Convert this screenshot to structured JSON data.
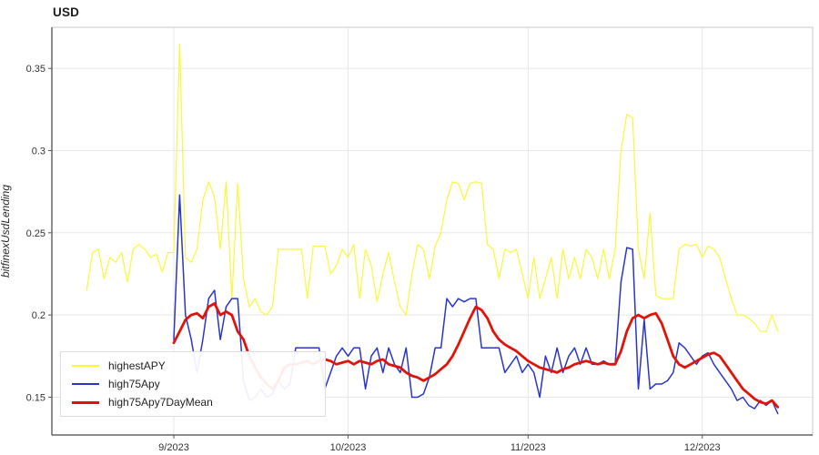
{
  "chart_data": {
    "type": "line",
    "title": "USD",
    "ylabel": "bitfinexUsdLending",
    "y_ticks": [
      0.15,
      0.2,
      0.25,
      0.3,
      0.35
    ],
    "ylim": [
      0.127,
      0.375
    ],
    "x_tick_labels": [
      "9/2023",
      "10/2023",
      "11/2023",
      "12/2023"
    ],
    "x_tick_days": [
      15,
      45,
      76,
      106
    ],
    "xlim_days": [
      -6,
      125
    ],
    "x_unit": "daily samples; day 0 = 2023-08-17, ticks mark the 1st of each month",
    "grid": true,
    "legend_position": "bottom-left",
    "series": [
      {
        "name": "highestAPY",
        "color": "#f8f83a",
        "width": 1.2,
        "start_day": 0,
        "values": [
          0.215,
          0.238,
          0.24,
          0.222,
          0.235,
          0.232,
          0.238,
          0.22,
          0.24,
          0.243,
          0.24,
          0.235,
          0.237,
          0.226,
          0.238,
          0.238,
          0.365,
          0.235,
          0.232,
          0.24,
          0.27,
          0.281,
          0.272,
          0.24,
          0.281,
          0.21,
          0.28,
          0.222,
          0.205,
          0.21,
          0.202,
          0.2,
          0.205,
          0.24,
          0.24,
          0.24,
          0.24,
          0.24,
          0.21,
          0.242,
          0.242,
          0.242,
          0.225,
          0.23,
          0.24,
          0.235,
          0.243,
          0.21,
          0.24,
          0.23,
          0.208,
          0.225,
          0.238,
          0.22,
          0.205,
          0.2,
          0.225,
          0.243,
          0.24,
          0.222,
          0.242,
          0.25,
          0.27,
          0.281,
          0.28,
          0.27,
          0.28,
          0.281,
          0.28,
          0.243,
          0.24,
          0.222,
          0.24,
          0.238,
          0.24,
          0.225,
          0.21,
          0.235,
          0.21,
          0.222,
          0.235,
          0.21,
          0.24,
          0.222,
          0.235,
          0.222,
          0.24,
          0.235,
          0.222,
          0.24,
          0.222,
          0.24,
          0.3,
          0.322,
          0.32,
          0.24,
          0.222,
          0.262,
          0.212,
          0.21,
          0.21,
          0.21,
          0.24,
          0.243,
          0.242,
          0.243,
          0.235,
          0.242,
          0.24,
          0.235,
          0.222,
          0.21,
          0.2,
          0.2,
          0.198,
          0.195,
          0.19,
          0.19,
          0.2,
          0.19
        ]
      },
      {
        "name": "high75Apy",
        "color": "#2a35c8",
        "width": 1.5,
        "start_day": 15,
        "values": [
          0.185,
          0.273,
          0.2,
          0.185,
          0.165,
          0.185,
          0.21,
          0.215,
          0.185,
          0.205,
          0.21,
          0.21,
          0.16,
          0.148,
          0.15,
          0.155,
          0.15,
          0.152,
          0.16,
          0.155,
          0.158,
          0.18,
          0.18,
          0.18,
          0.18,
          0.18,
          0.155,
          0.165,
          0.175,
          0.18,
          0.175,
          0.18,
          0.18,
          0.155,
          0.175,
          0.18,
          0.165,
          0.18,
          0.17,
          0.165,
          0.18,
          0.15,
          0.15,
          0.152,
          0.162,
          0.18,
          0.18,
          0.21,
          0.205,
          0.21,
          0.208,
          0.21,
          0.21,
          0.18,
          0.18,
          0.18,
          0.18,
          0.165,
          0.17,
          0.175,
          0.165,
          0.17,
          0.165,
          0.15,
          0.175,
          0.165,
          0.18,
          0.165,
          0.175,
          0.18,
          0.17,
          0.18,
          0.17,
          0.17,
          0.172,
          0.17,
          0.17,
          0.22,
          0.241,
          0.24,
          0.155,
          0.197,
          0.155,
          0.158,
          0.158,
          0.16,
          0.165,
          0.183,
          0.18,
          0.175,
          0.17,
          0.175,
          0.177,
          0.17,
          0.165,
          0.16,
          0.155,
          0.148,
          0.15,
          0.145,
          0.143,
          0.148,
          0.145,
          0.148,
          0.14
        ]
      },
      {
        "name": "high75Apy7DayMean",
        "color": "#e01309",
        "width": 2.8,
        "start_day": 15,
        "values": [
          0.183,
          0.19,
          0.197,
          0.2,
          0.201,
          0.198,
          0.205,
          0.207,
          0.2,
          0.202,
          0.2,
          0.19,
          0.185,
          0.175,
          0.168,
          0.162,
          0.158,
          0.155,
          0.16,
          0.168,
          0.17,
          0.17,
          0.171,
          0.172,
          0.17,
          0.172,
          0.173,
          0.172,
          0.17,
          0.171,
          0.172,
          0.17,
          0.172,
          0.171,
          0.17,
          0.172,
          0.173,
          0.17,
          0.169,
          0.168,
          0.165,
          0.163,
          0.162,
          0.16,
          0.162,
          0.164,
          0.167,
          0.17,
          0.175,
          0.182,
          0.19,
          0.198,
          0.205,
          0.203,
          0.198,
          0.19,
          0.185,
          0.182,
          0.18,
          0.178,
          0.175,
          0.172,
          0.17,
          0.168,
          0.167,
          0.166,
          0.165,
          0.167,
          0.168,
          0.17,
          0.171,
          0.172,
          0.171,
          0.17,
          0.171,
          0.17,
          0.17,
          0.178,
          0.19,
          0.198,
          0.2,
          0.198,
          0.2,
          0.201,
          0.195,
          0.185,
          0.175,
          0.17,
          0.168,
          0.17,
          0.172,
          0.174,
          0.176,
          0.177,
          0.175,
          0.17,
          0.165,
          0.16,
          0.155,
          0.152,
          0.149,
          0.147,
          0.146,
          0.148,
          0.144
        ]
      }
    ]
  }
}
